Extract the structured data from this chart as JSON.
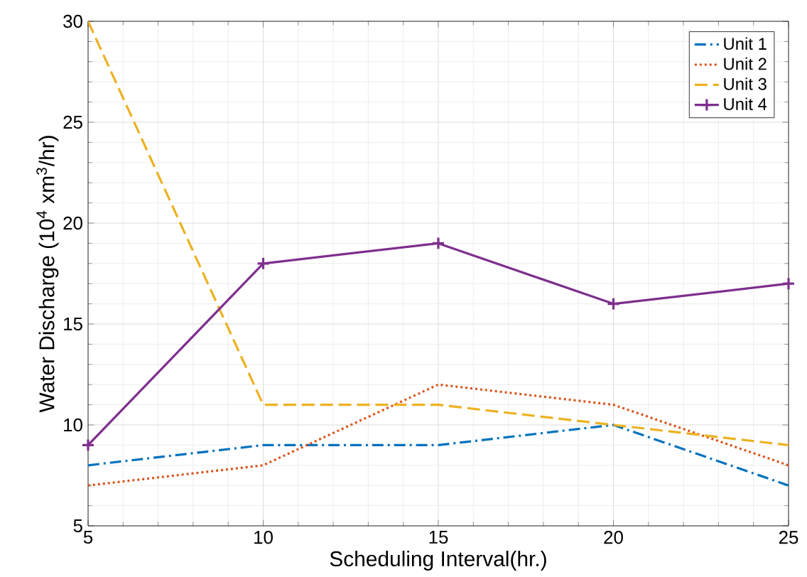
{
  "chart_data": {
    "type": "line",
    "xlabel": "Scheduling Interval(hr.)",
    "ylabel": "Water Discharge (10$^{4}$ xm$^{3}$/hr)",
    "x": [
      5,
      10,
      15,
      20,
      25
    ],
    "series": [
      {
        "name": "Unit 1",
        "color": "#0072bd",
        "line_style": "dashdot",
        "values": [
          8,
          9,
          9,
          10,
          7
        ]
      },
      {
        "name": "Unit 2",
        "color": "#d95319",
        "line_style": "dotted",
        "values": [
          7,
          8,
          12,
          11,
          8
        ]
      },
      {
        "name": "Unit 3",
        "color": "#edb120",
        "line_style": "dashed",
        "values": [
          30,
          11,
          11,
          10,
          9
        ]
      },
      {
        "name": "Unit 4",
        "color": "#7e2f8e",
        "line_style": "solid",
        "marker": "cross",
        "values": [
          9,
          18,
          19,
          16,
          17
        ]
      }
    ],
    "xlim": [
      5,
      25
    ],
    "ylim": [
      5,
      30
    ],
    "xticks": [
      5,
      10,
      15,
      20,
      25
    ],
    "yticks": [
      5,
      10,
      15,
      20,
      25,
      30
    ],
    "grid": true,
    "legend": "top right"
  }
}
